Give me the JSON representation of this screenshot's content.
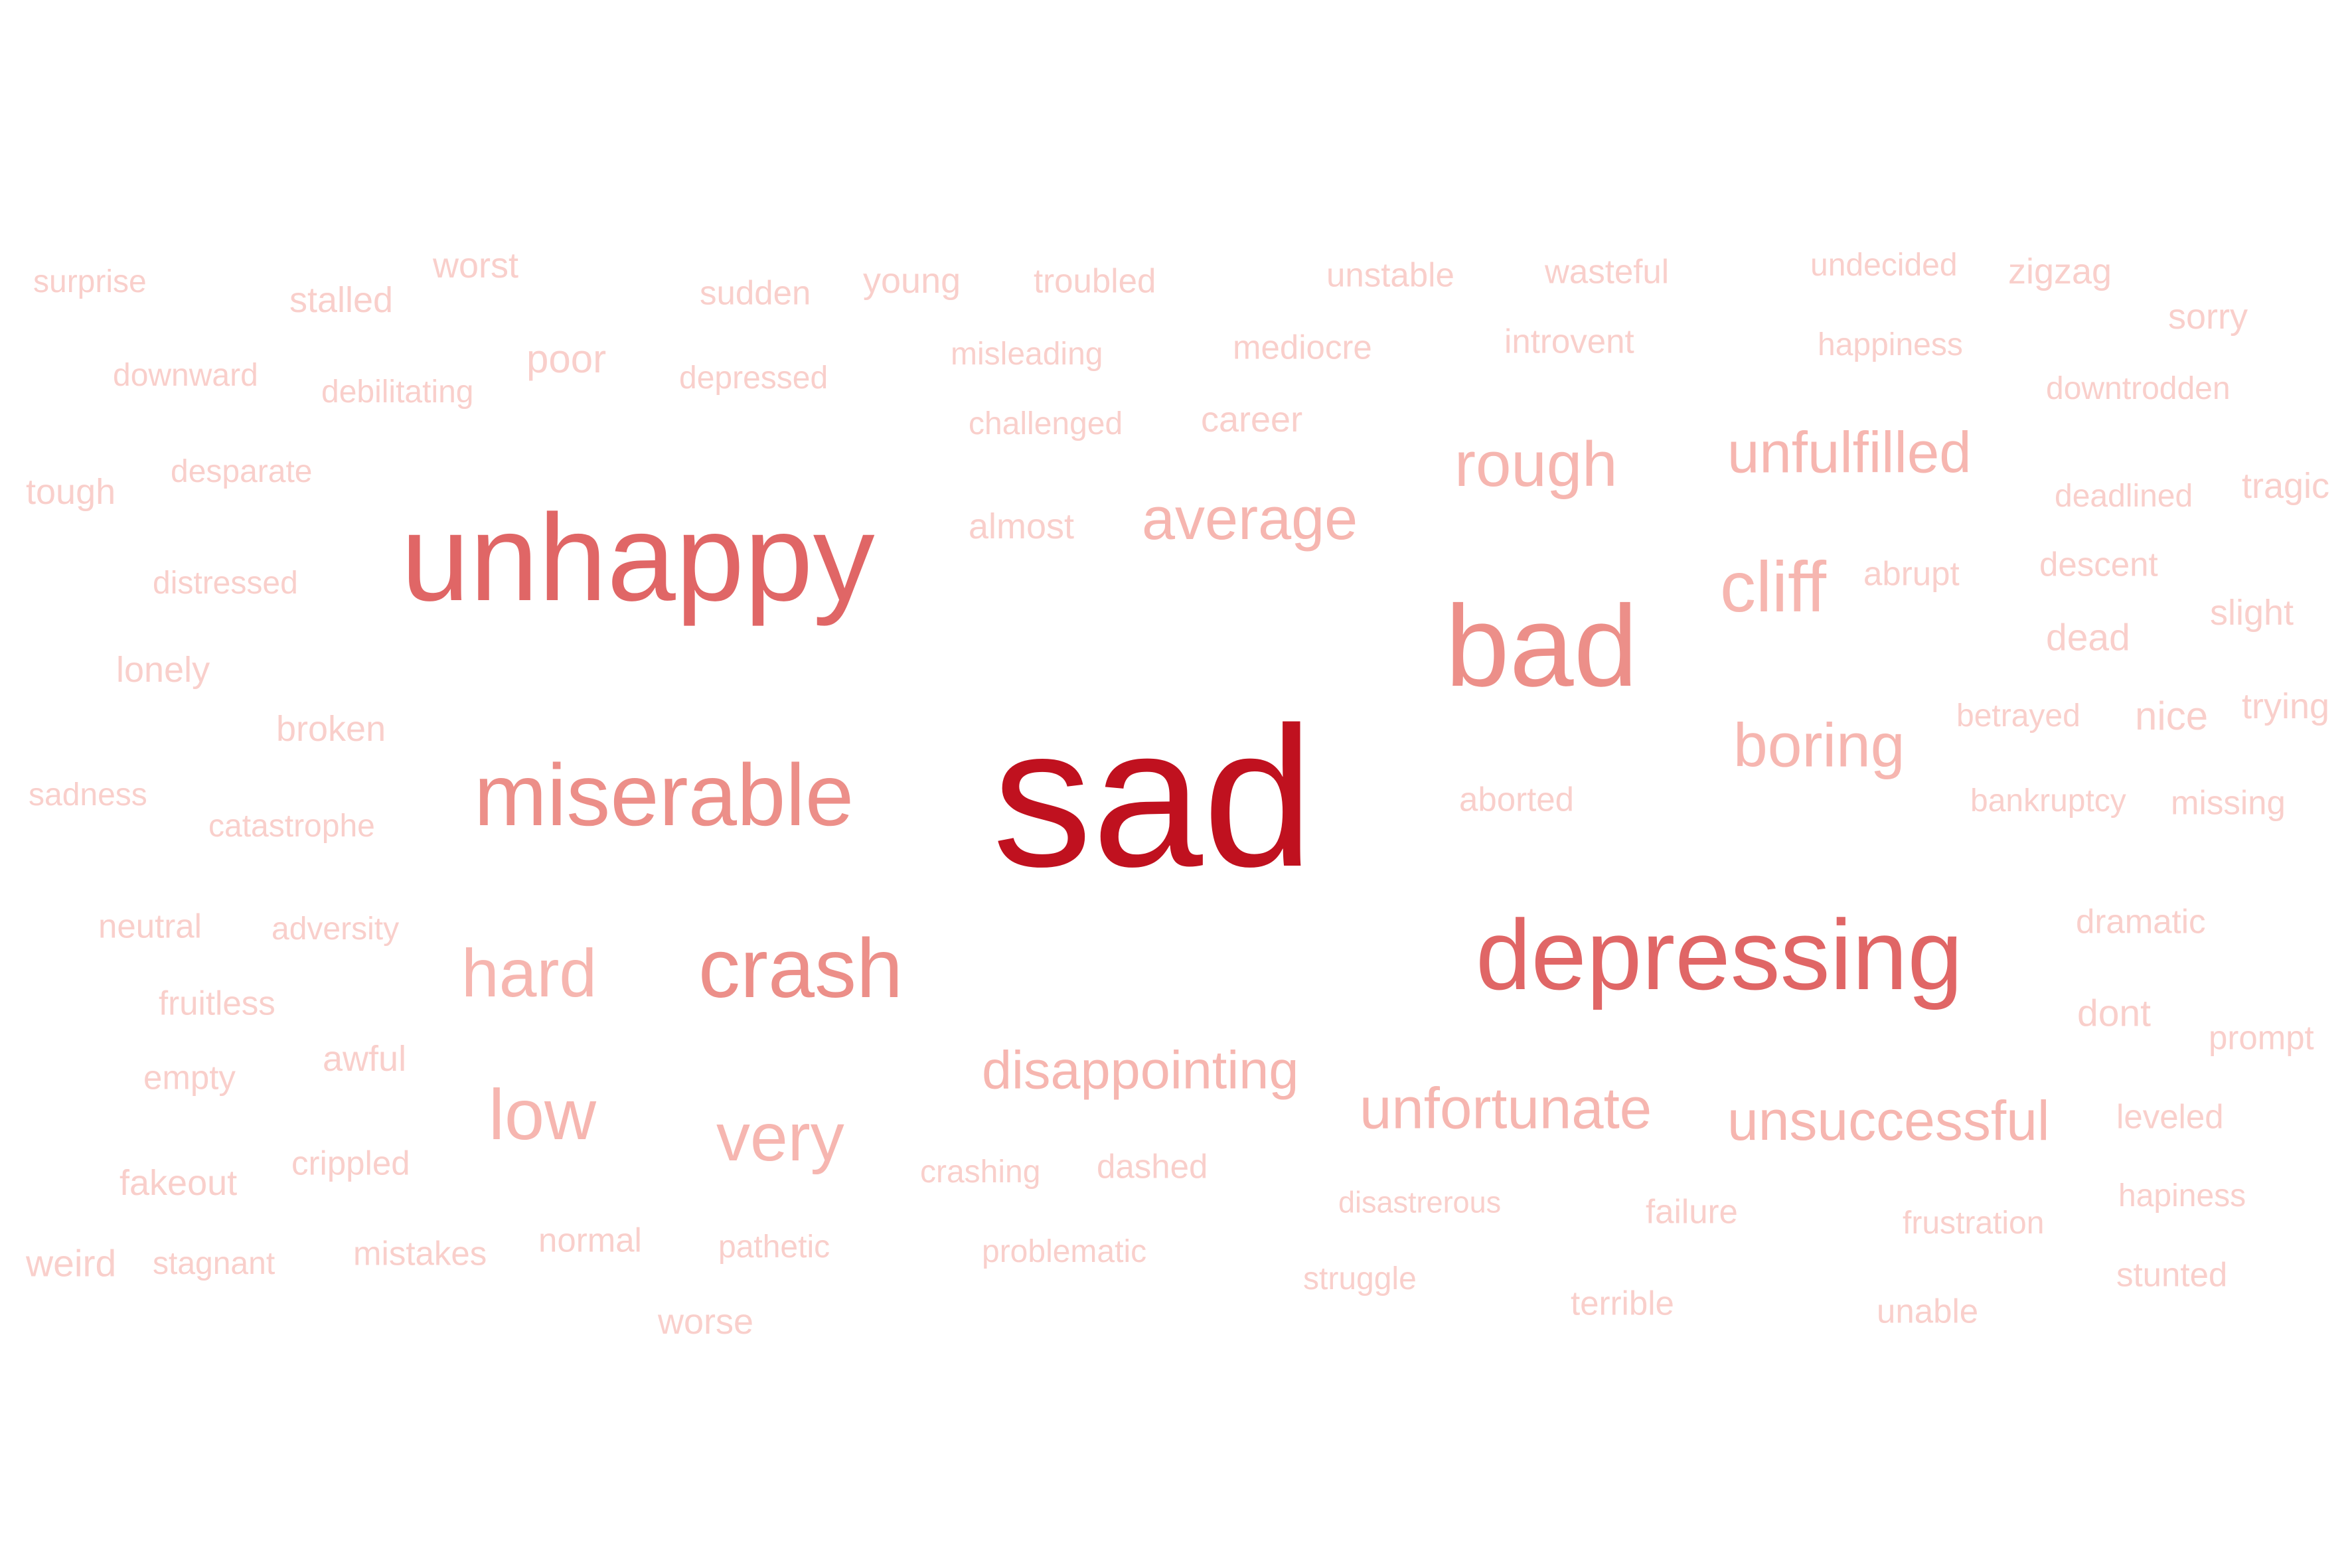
{
  "colors": {
    "background": "#ffffff",
    "strongest": "#c0111f",
    "strong": "#e06666",
    "medium": "#ec8f89",
    "light": "#f6b6b0",
    "faint": "#f9cfcb"
  },
  "words": [
    {
      "text": "sad",
      "weight": 1.0,
      "color": "strongest"
    },
    {
      "text": "unhappy",
      "weight": 0.62,
      "color": "strong"
    },
    {
      "text": "bad",
      "weight": 0.58,
      "color": "medium"
    },
    {
      "text": "depressing",
      "weight": 0.5,
      "color": "strong"
    },
    {
      "text": "miserable",
      "weight": 0.44,
      "color": "medium"
    },
    {
      "text": "crash",
      "weight": 0.42,
      "color": "medium"
    },
    {
      "text": "hard",
      "weight": 0.34,
      "color": "light"
    },
    {
      "text": "low",
      "weight": 0.36,
      "color": "light"
    },
    {
      "text": "very",
      "weight": 0.34,
      "color": "light"
    },
    {
      "text": "cliff",
      "weight": 0.36,
      "color": "light"
    },
    {
      "text": "rough",
      "weight": 0.32,
      "color": "light"
    },
    {
      "text": "boring",
      "weight": 0.31,
      "color": "light"
    },
    {
      "text": "average",
      "weight": 0.3,
      "color": "light"
    },
    {
      "text": "unfulfilled",
      "weight": 0.29,
      "color": "light"
    },
    {
      "text": "disappointing",
      "weight": 0.27,
      "color": "light"
    },
    {
      "text": "unfortunate",
      "weight": 0.29,
      "color": "light"
    },
    {
      "text": "unsuccessful",
      "weight": 0.28,
      "color": "light"
    },
    {
      "text": "worst",
      "weight": 0.18,
      "color": "faint"
    },
    {
      "text": "surprise",
      "weight": 0.16,
      "color": "faint"
    },
    {
      "text": "stalled",
      "weight": 0.18,
      "color": "faint"
    },
    {
      "text": "sudden",
      "weight": 0.17,
      "color": "faint"
    },
    {
      "text": "young",
      "weight": 0.18,
      "color": "faint"
    },
    {
      "text": "troubled",
      "weight": 0.17,
      "color": "faint"
    },
    {
      "text": "unstable",
      "weight": 0.17,
      "color": "faint"
    },
    {
      "text": "wasteful",
      "weight": 0.17,
      "color": "faint"
    },
    {
      "text": "undecided",
      "weight": 0.16,
      "color": "faint"
    },
    {
      "text": "zigzag",
      "weight": 0.18,
      "color": "faint"
    },
    {
      "text": "sorry",
      "weight": 0.18,
      "color": "faint"
    },
    {
      "text": "downward",
      "weight": 0.16,
      "color": "faint"
    },
    {
      "text": "debilitating",
      "weight": 0.16,
      "color": "faint"
    },
    {
      "text": "poor",
      "weight": 0.2,
      "color": "faint"
    },
    {
      "text": "depressed",
      "weight": 0.16,
      "color": "faint"
    },
    {
      "text": "misleading",
      "weight": 0.16,
      "color": "faint"
    },
    {
      "text": "mediocre",
      "weight": 0.17,
      "color": "faint"
    },
    {
      "text": "introvent",
      "weight": 0.17,
      "color": "faint"
    },
    {
      "text": "happiness",
      "weight": 0.16,
      "color": "faint"
    },
    {
      "text": "downtrodden",
      "weight": 0.16,
      "color": "faint"
    },
    {
      "text": "challenged",
      "weight": 0.16,
      "color": "faint"
    },
    {
      "text": "career",
      "weight": 0.18,
      "color": "faint"
    },
    {
      "text": "tough",
      "weight": 0.18,
      "color": "faint"
    },
    {
      "text": "desparate",
      "weight": 0.16,
      "color": "faint"
    },
    {
      "text": "almost",
      "weight": 0.18,
      "color": "faint"
    },
    {
      "text": "deadlined",
      "weight": 0.16,
      "color": "faint"
    },
    {
      "text": "tragic",
      "weight": 0.18,
      "color": "faint"
    },
    {
      "text": "abrupt",
      "weight": 0.17,
      "color": "faint"
    },
    {
      "text": "descent",
      "weight": 0.17,
      "color": "faint"
    },
    {
      "text": "distressed",
      "weight": 0.16,
      "color": "faint"
    },
    {
      "text": "slight",
      "weight": 0.18,
      "color": "faint"
    },
    {
      "text": "dead",
      "weight": 0.19,
      "color": "faint"
    },
    {
      "text": "lonely",
      "weight": 0.18,
      "color": "faint"
    },
    {
      "text": "broken",
      "weight": 0.18,
      "color": "faint"
    },
    {
      "text": "betrayed",
      "weight": 0.16,
      "color": "faint"
    },
    {
      "text": "nice",
      "weight": 0.2,
      "color": "faint"
    },
    {
      "text": "trying",
      "weight": 0.18,
      "color": "faint"
    },
    {
      "text": "sadness",
      "weight": 0.16,
      "color": "faint"
    },
    {
      "text": "aborted",
      "weight": 0.17,
      "color": "faint"
    },
    {
      "text": "bankruptcy",
      "weight": 0.16,
      "color": "faint"
    },
    {
      "text": "missing",
      "weight": 0.17,
      "color": "faint"
    },
    {
      "text": "catastrophe",
      "weight": 0.16,
      "color": "faint"
    },
    {
      "text": "neutral",
      "weight": 0.17,
      "color": "faint"
    },
    {
      "text": "adversity",
      "weight": 0.16,
      "color": "faint"
    },
    {
      "text": "dramatic",
      "weight": 0.17,
      "color": "faint"
    },
    {
      "text": "fruitless",
      "weight": 0.17,
      "color": "faint"
    },
    {
      "text": "dont",
      "weight": 0.19,
      "color": "faint"
    },
    {
      "text": "prompt",
      "weight": 0.17,
      "color": "faint"
    },
    {
      "text": "empty",
      "weight": 0.17,
      "color": "faint"
    },
    {
      "text": "awful",
      "weight": 0.18,
      "color": "faint"
    },
    {
      "text": "leveled",
      "weight": 0.17,
      "color": "faint"
    },
    {
      "text": "fakeout",
      "weight": 0.18,
      "color": "faint"
    },
    {
      "text": "crippled",
      "weight": 0.17,
      "color": "faint"
    },
    {
      "text": "crashing",
      "weight": 0.16,
      "color": "faint"
    },
    {
      "text": "dashed",
      "weight": 0.17,
      "color": "faint"
    },
    {
      "text": "disastrerous",
      "weight": 0.15,
      "color": "faint"
    },
    {
      "text": "failure",
      "weight": 0.17,
      "color": "faint"
    },
    {
      "text": "hapiness",
      "weight": 0.16,
      "color": "faint"
    },
    {
      "text": "frustration",
      "weight": 0.16,
      "color": "faint"
    },
    {
      "text": "weird",
      "weight": 0.19,
      "color": "faint"
    },
    {
      "text": "stagnant",
      "weight": 0.16,
      "color": "faint"
    },
    {
      "text": "mistakes",
      "weight": 0.17,
      "color": "faint"
    },
    {
      "text": "normal",
      "weight": 0.17,
      "color": "faint"
    },
    {
      "text": "pathetic",
      "weight": 0.16,
      "color": "faint"
    },
    {
      "text": "problematic",
      "weight": 0.16,
      "color": "faint"
    },
    {
      "text": "struggle",
      "weight": 0.16,
      "color": "faint"
    },
    {
      "text": "terrible",
      "weight": 0.17,
      "color": "faint"
    },
    {
      "text": "unable",
      "weight": 0.17,
      "color": "faint"
    },
    {
      "text": "stunted",
      "weight": 0.17,
      "color": "faint"
    },
    {
      "text": "worse",
      "weight": 0.18,
      "color": "faint"
    }
  ]
}
